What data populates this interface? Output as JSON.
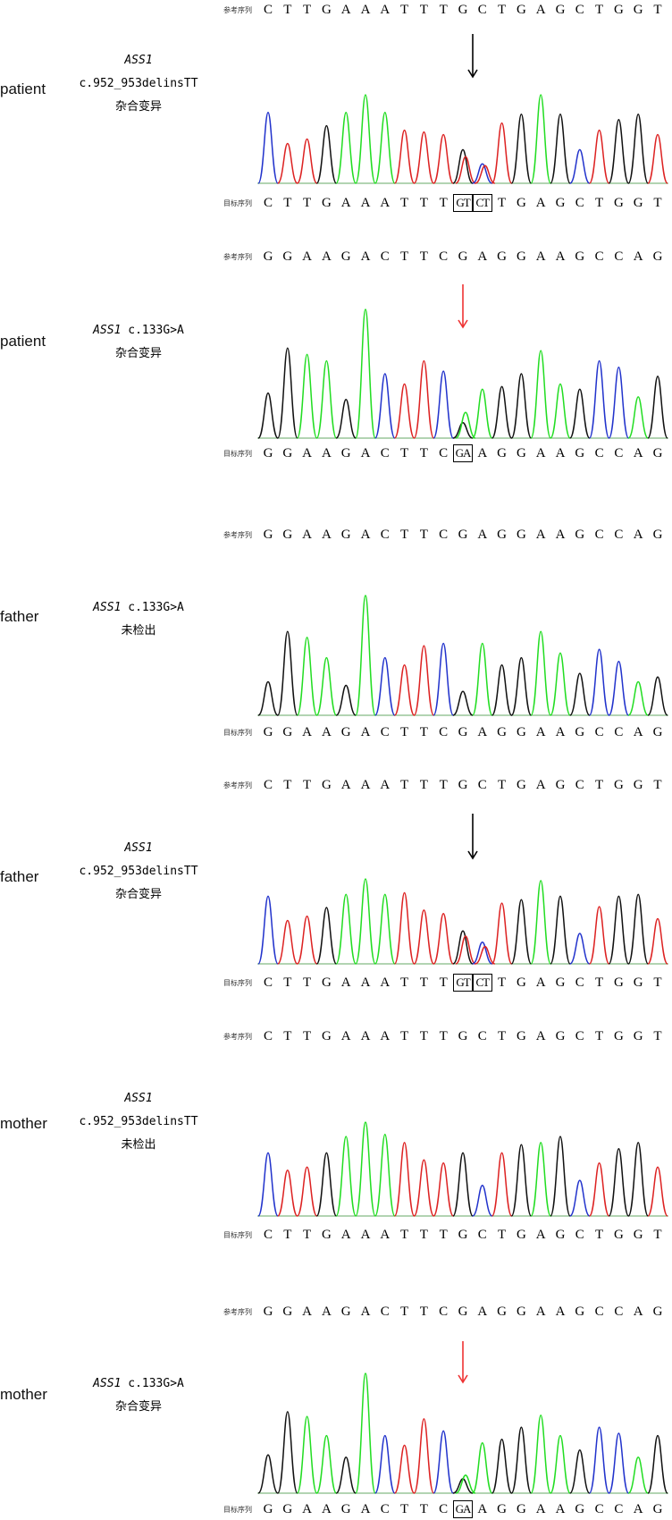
{
  "labels": {
    "reference": "参考序列",
    "target": "目标序列"
  },
  "colors": {
    "A": "#22dd22",
    "C": "#2233cc",
    "G": "#111111",
    "T": "#dd2222"
  },
  "panels": [
    {
      "subject": "patient",
      "gene": "ASS1",
      "variant": "c.952_953delinsTT",
      "status": "杂合变异",
      "gene_inline": false,
      "reference": [
        "C",
        "T",
        "T",
        "G",
        "A",
        "A",
        "A",
        "T",
        "T",
        "T",
        "G",
        "C",
        "T",
        "G",
        "A",
        "G",
        "C",
        "T",
        "G",
        "G",
        "T"
      ],
      "target": [
        "C",
        "T",
        "T",
        "G",
        "A",
        "A",
        "A",
        "T",
        "T",
        "T",
        "GT",
        "CT",
        "T",
        "G",
        "A",
        "G",
        "C",
        "T",
        "G",
        "G",
        "T"
      ],
      "boxed_target": [
        10,
        11
      ],
      "arrow_color": "#000000",
      "arrow_index": 10.5,
      "peaks": [
        0.8,
        0.45,
        0.5,
        0.65,
        0.8,
        1.0,
        0.8,
        0.6,
        0.58,
        0.55,
        0.38,
        0.22,
        0.68,
        0.78,
        1.0,
        0.78,
        0.38,
        0.6,
        0.72,
        0.78,
        0.55
      ],
      "secondary": {
        "10": {
          "base": "T",
          "h": 0.3
        },
        "11": {
          "base": "T",
          "h": 0.2
        }
      }
    },
    {
      "subject": "patient",
      "gene": "ASS1",
      "variant": "c.133G>A",
      "status": "杂合变异",
      "gene_inline": true,
      "reference": [
        "G",
        "G",
        "A",
        "A",
        "G",
        "A",
        "C",
        "T",
        "T",
        "C",
        "G",
        "A",
        "G",
        "G",
        "A",
        "A",
        "G",
        "C",
        "C",
        "A",
        "G"
      ],
      "target": [
        "G",
        "G",
        "A",
        "A",
        "G",
        "A",
        "C",
        "T",
        "T",
        "C",
        "GA",
        "A",
        "G",
        "G",
        "A",
        "A",
        "G",
        "C",
        "C",
        "A",
        "G"
      ],
      "boxed_target": [
        10
      ],
      "arrow_color": "#ee3333",
      "arrow_index": 10,
      "peaks": [
        0.35,
        0.7,
        0.65,
        0.6,
        0.3,
        1.0,
        0.5,
        0.42,
        0.6,
        0.52,
        0.12,
        0.38,
        0.4,
        0.5,
        0.68,
        0.42,
        0.38,
        0.6,
        0.55,
        0.32,
        0.48
      ],
      "secondary": {
        "10": {
          "base": "A",
          "h": 0.2
        }
      }
    },
    {
      "subject": "father",
      "gene": "ASS1",
      "variant": "c.133G>A",
      "status": "未检出",
      "gene_inline": true,
      "reference": [
        "G",
        "G",
        "A",
        "A",
        "G",
        "A",
        "C",
        "T",
        "T",
        "C",
        "G",
        "A",
        "G",
        "G",
        "A",
        "A",
        "G",
        "C",
        "C",
        "A",
        "G"
      ],
      "target": [
        "G",
        "G",
        "A",
        "A",
        "G",
        "A",
        "C",
        "T",
        "T",
        "C",
        "G",
        "A",
        "G",
        "G",
        "A",
        "A",
        "G",
        "C",
        "C",
        "A",
        "G"
      ],
      "boxed_target": [],
      "arrow_color": "",
      "arrow_index": -1,
      "peaks": [
        0.28,
        0.7,
        0.65,
        0.48,
        0.25,
        1.0,
        0.48,
        0.42,
        0.58,
        0.6,
        0.2,
        0.6,
        0.42,
        0.48,
        0.7,
        0.52,
        0.35,
        0.55,
        0.45,
        0.28,
        0.32
      ],
      "secondary": {}
    },
    {
      "subject": "father",
      "gene": "ASS1",
      "variant": "c.952_953delinsTT",
      "status": "杂合变异",
      "gene_inline": false,
      "reference": [
        "C",
        "T",
        "T",
        "G",
        "A",
        "A",
        "A",
        "T",
        "T",
        "T",
        "G",
        "C",
        "T",
        "G",
        "A",
        "G",
        "C",
        "T",
        "G",
        "G",
        "T"
      ],
      "target": [
        "C",
        "T",
        "T",
        "G",
        "A",
        "A",
        "A",
        "T",
        "T",
        "T",
        "GT",
        "CT",
        "T",
        "G",
        "A",
        "G",
        "C",
        "T",
        "G",
        "G",
        "T"
      ],
      "boxed_target": [
        10,
        11
      ],
      "arrow_color": "#000000",
      "arrow_index": 10.5,
      "peaks": [
        0.78,
        0.5,
        0.55,
        0.65,
        0.8,
        0.98,
        0.8,
        0.82,
        0.62,
        0.58,
        0.38,
        0.25,
        0.7,
        0.74,
        0.96,
        0.78,
        0.35,
        0.66,
        0.78,
        0.8,
        0.52
      ],
      "secondary": {
        "10": {
          "base": "T",
          "h": 0.32
        },
        "11": {
          "base": "T",
          "h": 0.2
        }
      }
    },
    {
      "subject": "mother",
      "gene": "ASS1",
      "variant": "c.952_953delinsTT",
      "status": "未检出",
      "gene_inline": false,
      "reference": [
        "C",
        "T",
        "T",
        "G",
        "A",
        "A",
        "A",
        "T",
        "T",
        "T",
        "G",
        "C",
        "T",
        "G",
        "A",
        "G",
        "C",
        "T",
        "G",
        "G",
        "T"
      ],
      "target": [
        "C",
        "T",
        "T",
        "G",
        "A",
        "A",
        "A",
        "T",
        "T",
        "T",
        "G",
        "C",
        "T",
        "G",
        "A",
        "G",
        "C",
        "T",
        "G",
        "G",
        "T"
      ],
      "boxed_target": [],
      "arrow_color": "",
      "arrow_index": -1,
      "peaks": [
        0.62,
        0.45,
        0.48,
        0.62,
        0.78,
        0.92,
        0.8,
        0.72,
        0.55,
        0.52,
        0.62,
        0.3,
        0.62,
        0.7,
        0.72,
        0.78,
        0.35,
        0.52,
        0.66,
        0.72,
        0.48
      ],
      "secondary": {}
    },
    {
      "subject": "mother",
      "gene": "ASS1",
      "variant": "c.133G>A",
      "status": "杂合变异",
      "gene_inline": true,
      "reference": [
        "G",
        "G",
        "A",
        "A",
        "G",
        "A",
        "C",
        "T",
        "T",
        "C",
        "G",
        "A",
        "G",
        "G",
        "A",
        "A",
        "G",
        "C",
        "C",
        "A",
        "G"
      ],
      "target": [
        "G",
        "G",
        "A",
        "A",
        "G",
        "A",
        "C",
        "T",
        "T",
        "C",
        "GA",
        "A",
        "G",
        "G",
        "A",
        "A",
        "G",
        "C",
        "C",
        "A",
        "G"
      ],
      "boxed_target": [
        10
      ],
      "arrow_color": "#ee3333",
      "arrow_index": 10,
      "peaks": [
        0.32,
        0.68,
        0.64,
        0.48,
        0.3,
        1.0,
        0.48,
        0.4,
        0.62,
        0.52,
        0.12,
        0.42,
        0.45,
        0.55,
        0.65,
        0.48,
        0.36,
        0.55,
        0.5,
        0.3,
        0.48
      ],
      "secondary": {
        "10": {
          "base": "A",
          "h": 0.15
        }
      }
    }
  ]
}
